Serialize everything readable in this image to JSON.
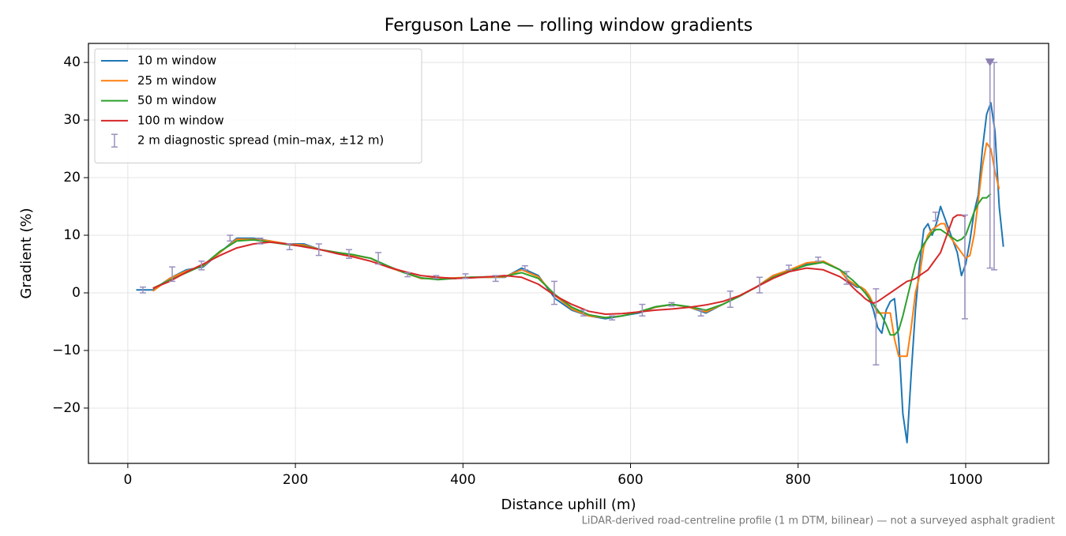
{
  "chart_data": {
    "type": "line",
    "title": "Ferguson Lane — rolling window gradients",
    "x_label": "Distance uphill (m)",
    "y_label": "Gradient (%)",
    "footnote": "LiDAR-derived road-centreline profile (1 m DTM, bilinear) — not a surveyed asphalt gradient",
    "xlim": [
      -47,
      1099
    ],
    "ylim": [
      -29.6,
      43.3
    ],
    "xticks": [
      0,
      200,
      400,
      600,
      800,
      1000
    ],
    "yticks": [
      {
        "value": -20,
        "label": "−20"
      },
      {
        "value": -10,
        "label": "−10"
      },
      0,
      10,
      20,
      30,
      40
    ],
    "grid": true,
    "legend": "upper left",
    "x": [
      10,
      30,
      50,
      70,
      90,
      110,
      130,
      150,
      170,
      190,
      210,
      230,
      250,
      270,
      290,
      310,
      330,
      350,
      370,
      390,
      410,
      430,
      450,
      470,
      490,
      510,
      530,
      550,
      570,
      590,
      610,
      630,
      650,
      670,
      690,
      710,
      730,
      750,
      770,
      790,
      810,
      830,
      850,
      855,
      860,
      865,
      870,
      875,
      880,
      885,
      890,
      895,
      900,
      905,
      910,
      915,
      920,
      925,
      930,
      935,
      940,
      945,
      950,
      955,
      960,
      965,
      970,
      975,
      980,
      985,
      990,
      995,
      1000,
      1005,
      1010,
      1015,
      1020,
      1025,
      1030,
      1035,
      1040,
      1045
    ],
    "series": [
      {
        "name": "10 m window",
        "color": "#1f77b4",
        "values": [
          0.5,
          0.5,
          2.5,
          4,
          4.5,
          7,
          9.5,
          9.5,
          9,
          8.5,
          8.5,
          7.5,
          7,
          6.5,
          6,
          4.5,
          3.5,
          2.5,
          2.5,
          2.5,
          2.7,
          2.7,
          2.7,
          4.3,
          3,
          -1,
          -3,
          -4,
          -4.5,
          -4,
          -3.5,
          -2.5,
          -2,
          -2.5,
          -3.5,
          -2,
          -0.5,
          1,
          3,
          4,
          5,
          5.5,
          4,
          3,
          2,
          1.5,
          1,
          1,
          0.5,
          -1,
          -3,
          -6,
          -7,
          -3,
          -1.5,
          -1,
          -8,
          -21,
          -26,
          -14,
          -3,
          5,
          11,
          12,
          10,
          12,
          15,
          13,
          11,
          9,
          7,
          3,
          5,
          9,
          14,
          17,
          25,
          31,
          33,
          28,
          15,
          8
        ]
      },
      {
        "name": "25 m window",
        "color": "#ff7f0e",
        "values": [
          null,
          0.3,
          2.5,
          3.8,
          4.7,
          7,
          9.3,
          9.3,
          9,
          8.5,
          8.3,
          7.5,
          7,
          6.5,
          6,
          4.5,
          3.5,
          2.5,
          2.5,
          2.6,
          2.7,
          2.7,
          2.8,
          4,
          2.8,
          -0.5,
          -2.8,
          -4,
          -4.3,
          -4,
          -3.3,
          -2.5,
          -2,
          -2.5,
          -3.3,
          -2,
          -0.5,
          1,
          3,
          4,
          5.2,
          5.5,
          4,
          3,
          2.2,
          1.7,
          1.2,
          1,
          0.5,
          -0.5,
          -2,
          -3.5,
          -3.5,
          -3.5,
          -3.5,
          -8,
          -11,
          -11,
          -11,
          -6,
          0,
          3,
          8,
          10,
          11,
          11.5,
          12,
          12,
          10,
          9,
          8,
          7,
          6,
          6.5,
          10,
          16,
          22,
          26,
          25,
          21,
          18,
          null
        ]
      },
      {
        "name": "50 m window",
        "color": "#2ca02c",
        "values": [
          null,
          0.8,
          2.2,
          3.5,
          4.8,
          7.2,
          9,
          9.2,
          8.8,
          8.4,
          8.1,
          7.5,
          7,
          6.6,
          6,
          4.7,
          3.5,
          2.6,
          2.3,
          2.5,
          2.7,
          2.8,
          2.9,
          3.5,
          2.5,
          -0.3,
          -2.5,
          -3.8,
          -4.3,
          -4,
          -3.3,
          -2.4,
          -2,
          -2.4,
          -3,
          -2,
          -0.6,
          1,
          2.7,
          3.8,
          4.8,
          5.3,
          4,
          3.5,
          2.8,
          2.2,
          1.5,
          0.8,
          0,
          -1,
          -2,
          -3,
          -4,
          -5.5,
          -7.3,
          -7.3,
          -6.5,
          -4,
          -1,
          2,
          5,
          7,
          8.5,
          9.5,
          10.5,
          11,
          11,
          10.5,
          10,
          9.5,
          9,
          9.3,
          10,
          12,
          14,
          15.5,
          16.5,
          16.5,
          17.2,
          null,
          null,
          null
        ]
      },
      {
        "name": "100 m window",
        "color": "#d62728",
        "values": [
          null,
          0.8,
          2,
          3.6,
          5,
          6.5,
          7.8,
          8.5,
          8.8,
          8.5,
          8,
          7.5,
          6.8,
          6.2,
          5.5,
          4.5,
          3.7,
          3,
          2.7,
          2.5,
          2.6,
          2.8,
          3,
          2.7,
          1.5,
          -0.5,
          -2,
          -3.2,
          -3.7,
          -3.6,
          -3.3,
          -3,
          -2.8,
          -2.5,
          -2.1,
          -1.5,
          -0.5,
          1,
          2.5,
          3.7,
          4.3,
          4,
          2.8,
          2.3,
          1.8,
          1,
          0.3,
          -0.3,
          -1,
          -1.5,
          -1.8,
          -1.5,
          -1,
          -0.5,
          0,
          0.5,
          1,
          1.5,
          2,
          2.2,
          2.5,
          3,
          3.5,
          4,
          5,
          6,
          7,
          9,
          11,
          13,
          13.5,
          13.5,
          13.2,
          null,
          null,
          null,
          null,
          null,
          null,
          null,
          null,
          null
        ]
      }
    ],
    "error_bars": {
      "name": "2 m diagnostic spread (min–max, ±12 m)",
      "color": "#9a90c0",
      "x": [
        18,
        53,
        88,
        122,
        158,
        193,
        228,
        264,
        299,
        334,
        368,
        403,
        439,
        474,
        509,
        544,
        578,
        614,
        649,
        684,
        719,
        754,
        789,
        824,
        858,
        893,
        964,
        999,
        1029,
        1034
      ],
      "low": [
        0,
        2,
        4,
        9,
        8.5,
        7.5,
        6.5,
        6,
        5,
        2.8,
        2.5,
        2.5,
        2,
        4,
        -2,
        -4,
        -4.7,
        -4,
        -2.3,
        -4,
        -2.5,
        0,
        4,
        5.5,
        1.5,
        -12.5,
        12.5,
        -4.5,
        4.3,
        4
      ],
      "high": [
        1,
        4.5,
        5.5,
        10,
        9.5,
        8.5,
        8.5,
        7.5,
        7,
        3.5,
        3,
        3.3,
        3,
        4.7,
        2,
        -3,
        -4,
        -2,
        -1.7,
        -3,
        0.3,
        2.7,
        4.8,
        6.2,
        3.7,
        0.7,
        14,
        13.5,
        40,
        40
      ]
    }
  }
}
